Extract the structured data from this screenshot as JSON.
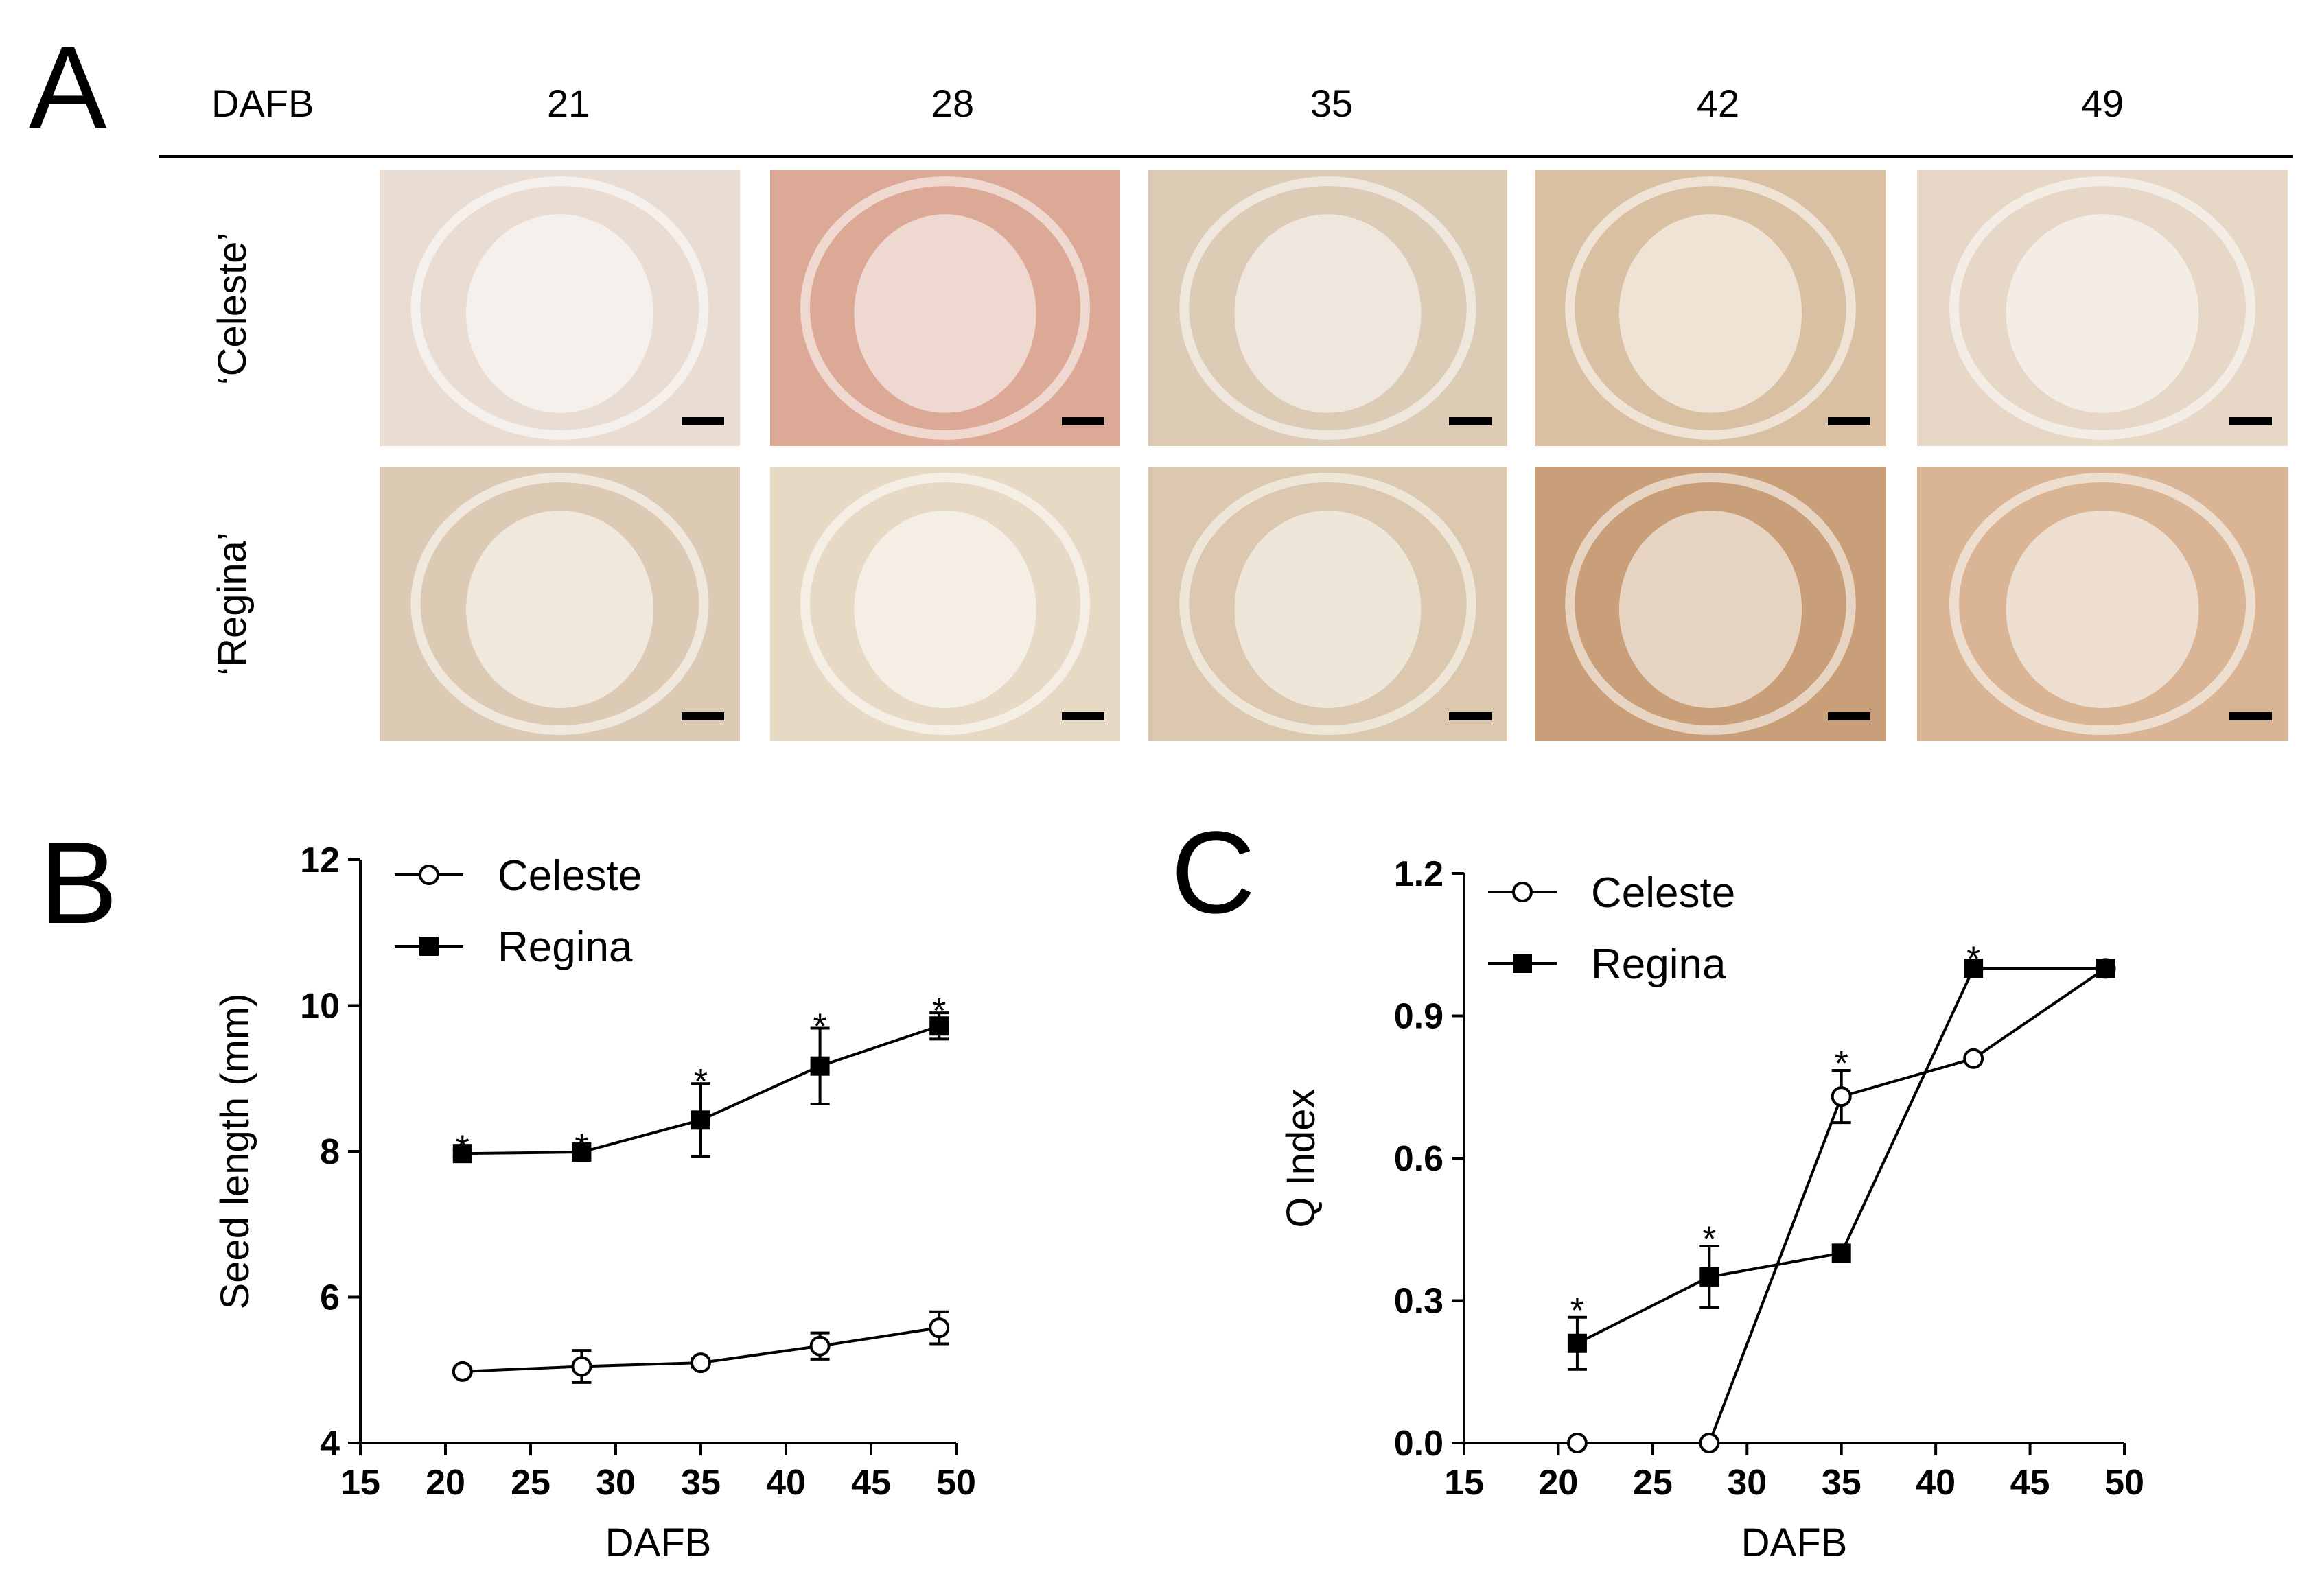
{
  "panels": {
    "a": "A",
    "b": "B",
    "c": "C"
  },
  "photo_grid": {
    "header_label": "DAFB",
    "columns": [
      "21",
      "28",
      "35",
      "42",
      "49"
    ],
    "rows": [
      "‘Celeste’",
      "‘Regina’"
    ],
    "tints": [
      [
        "#e9ddd3",
        "#dba996",
        "#dccbb5",
        "#d9c0a2",
        "#e6d7c7"
      ],
      [
        "#ddcab4",
        "#e6dac5",
        "#dbc8ae",
        "#c99f7a",
        "#d9b595"
      ]
    ]
  },
  "chart_data": [
    {
      "type": "line",
      "panel": "B",
      "xlabel": "DAFB",
      "ylabel": "Seed length (mm)",
      "xlim": [
        15,
        50
      ],
      "ylim": [
        4,
        12
      ],
      "xticks": [
        "15",
        "20",
        "25",
        "30",
        "35",
        "40",
        "45",
        "50"
      ],
      "yticks": [
        "4",
        "6",
        "8",
        "10",
        "12"
      ],
      "legend": [
        "Celeste",
        "Regina"
      ],
      "legend_position": "top-left",
      "x": [
        21,
        28,
        35,
        42,
        49
      ],
      "series": [
        {
          "name": "Celeste",
          "marker": "open-circle",
          "values": [
            4.98,
            5.05,
            5.1,
            5.33,
            5.58
          ],
          "errors": [
            0.05,
            0.22,
            0.06,
            0.18,
            0.22
          ]
        },
        {
          "name": "Regina",
          "marker": "filled-square",
          "values": [
            7.97,
            7.99,
            8.43,
            9.17,
            9.72
          ],
          "errors": [
            0.05,
            0.05,
            0.5,
            0.52,
            0.18
          ]
        }
      ],
      "annotations": [
        {
          "x": 21,
          "y": 8.05,
          "text": "*"
        },
        {
          "x": 28,
          "y": 8.07,
          "text": "*"
        },
        {
          "x": 35,
          "y": 8.96,
          "text": "*"
        },
        {
          "x": 42,
          "y": 9.72,
          "text": "*"
        },
        {
          "x": 49,
          "y": 9.93,
          "text": "*"
        }
      ]
    },
    {
      "type": "line",
      "panel": "C",
      "xlabel": "DAFB",
      "ylabel": "Q Index",
      "xlim": [
        15,
        50
      ],
      "ylim": [
        0,
        1.2
      ],
      "xticks": [
        "15",
        "20",
        "25",
        "30",
        "35",
        "40",
        "45",
        "50"
      ],
      "yticks": [
        "0.0",
        "0.3",
        "0.6",
        "0.9",
        "1.2"
      ],
      "legend": [
        "Celeste",
        "Regina"
      ],
      "legend_position": "top-left",
      "x": [
        21,
        28,
        35,
        42,
        49
      ],
      "series": [
        {
          "name": "Celeste",
          "marker": "open-circle",
          "values": [
            0.0,
            0.0,
            0.73,
            0.81,
            1.0
          ],
          "errors": [
            0,
            0,
            0.055,
            0,
            0
          ]
        },
        {
          "name": "Regina",
          "marker": "filled-square",
          "values": [
            0.21,
            0.35,
            0.4,
            1.0,
            1.0
          ],
          "errors": [
            0.055,
            0.065,
            0,
            0,
            0
          ]
        }
      ],
      "annotations": [
        {
          "x": 21,
          "y": 0.28,
          "text": "*"
        },
        {
          "x": 28,
          "y": 0.43,
          "text": "*"
        },
        {
          "x": 35,
          "y": 0.8,
          "text": "*"
        },
        {
          "x": 42,
          "y": 1.02,
          "text": "*"
        }
      ]
    }
  ]
}
